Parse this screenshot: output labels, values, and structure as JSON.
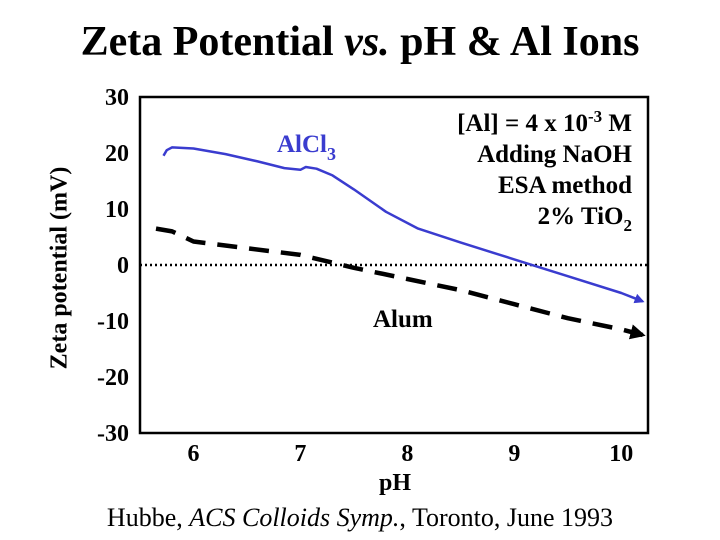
{
  "title": {
    "part1": "Zeta Potential ",
    "italic": "vs.",
    "part2": " pH & Al Ions"
  },
  "citation": {
    "author": "Hubbe, ",
    "venue": "ACS Colloids Symp.",
    "rest": ", Toronto, June 1993"
  },
  "colors": {
    "alcl3": "#3a3ccf",
    "alum": "#000000",
    "axis": "#000000"
  },
  "chart_data": {
    "type": "line",
    "xlabel": "pH",
    "ylabel": "Zeta potential  (mV)",
    "xlim": [
      5.5,
      10.25
    ],
    "ylim": [
      -30,
      30
    ],
    "x_ticks": [
      6,
      7,
      8,
      9,
      10
    ],
    "y_ticks": [
      30,
      20,
      10,
      0,
      -10,
      -20,
      -30
    ],
    "zero_line": true,
    "annotations": [
      {
        "base": "[Al] = 4 x 10",
        "sup": "-3",
        "tail": " M"
      },
      {
        "base": "Adding NaOH",
        "sup": "",
        "tail": ""
      },
      {
        "base": "ESA method",
        "sup": "",
        "tail": ""
      },
      {
        "base": "2% TiO",
        "sub": "2",
        "tail": ""
      }
    ],
    "series": [
      {
        "name": "AlCl3",
        "label_base": "AlCl",
        "label_sub": "3",
        "style": "solid",
        "x": [
          5.72,
          5.75,
          5.8,
          6.0,
          6.3,
          6.6,
          6.85,
          7.0,
          7.05,
          7.15,
          7.3,
          7.5,
          7.8,
          8.1,
          8.5,
          9.0,
          9.5,
          10.0,
          10.2
        ],
        "y": [
          19.5,
          20.5,
          21.0,
          20.8,
          19.8,
          18.5,
          17.3,
          17.0,
          17.5,
          17.2,
          16.0,
          13.5,
          9.5,
          6.5,
          4.0,
          1.0,
          -2.0,
          -5.0,
          -6.5
        ]
      },
      {
        "name": "Alum",
        "label_base": "Alum",
        "style": "dashed",
        "x": [
          5.65,
          5.8,
          6.0,
          6.5,
          7.0,
          7.5,
          8.0,
          8.5,
          9.0,
          9.5,
          10.0,
          10.2
        ],
        "y": [
          6.5,
          6.0,
          4.2,
          3.0,
          1.8,
          -0.5,
          -2.5,
          -4.5,
          -7.0,
          -9.5,
          -11.5,
          -12.5
        ]
      }
    ]
  }
}
